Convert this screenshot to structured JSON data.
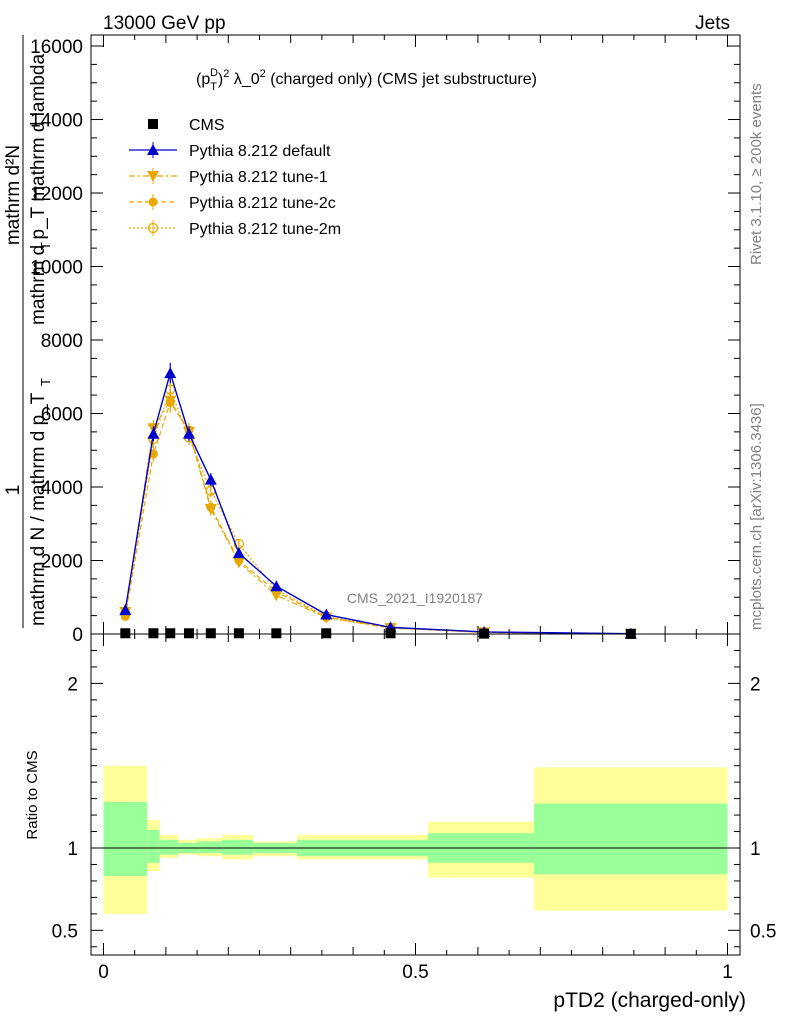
{
  "header": {
    "left": "13000 GeV pp",
    "right": "Jets"
  },
  "side_labels": {
    "rivet": "Rivet 3.1.10, ≥ 200k events",
    "mcplots": "mcplots.cern.ch [arXiv:1306.3436]"
  },
  "chart_data": [
    {
      "type": "line",
      "title": "(p_T^D)^2 λ_0^2 (charged only) (CMS jet substructure)",
      "title_parts": {
        "pre": "(p",
        "sup1": "D",
        "sub1": "T",
        "mid": ")",
        "sup2": "2",
        "lam": " λ_0",
        "sup3": "2",
        "post": " (charged only) (CMS jet substructure)"
      },
      "ylabel": {
        "frac1_num": "1",
        "frac1_den": "mathrm d N / mathrm d p_T",
        "frac1_den_sub": "T",
        "frac2_num": "mathrm d²N",
        "frac2_den": "mathrm d p_T mathrm d lambda",
        "frac2_den_sub": "T"
      },
      "xlabel": "pTD2 (charged-only)",
      "xlim": [
        -0.02,
        1.02
      ],
      "ylim": [
        0,
        16300
      ],
      "yticks": [
        0,
        2000,
        4000,
        6000,
        8000,
        10000,
        12000,
        14000,
        16000
      ],
      "ytick_labels": [
        "0",
        "2000",
        "4000",
        "6000",
        "8000",
        "10000",
        "12000",
        "14000",
        "16000"
      ],
      "watermark": "CMS_2021_I1920187",
      "series": [
        {
          "name": "CMS",
          "color": "#000000",
          "marker": "square",
          "x": [
            0.035,
            0.08,
            0.107,
            0.137,
            0.172,
            0.217,
            0.277,
            0.357,
            0.46,
            0.61,
            0.845
          ],
          "y": [
            20,
            20,
            20,
            20,
            20,
            20,
            20,
            20,
            20,
            10,
            5
          ]
        },
        {
          "name": "Pythia 8.212 default",
          "color": "#0000cc",
          "marker": "triangle",
          "dash": "",
          "x": [
            0.035,
            0.08,
            0.107,
            0.137,
            0.172,
            0.217,
            0.277,
            0.357,
            0.46,
            0.61,
            0.845
          ],
          "y": [
            650,
            5450,
            7100,
            5450,
            4200,
            2200,
            1300,
            530,
            180,
            55,
            8
          ],
          "err": [
            80,
            200,
            280,
            200,
            180,
            120,
            80,
            40,
            20,
            10,
            3
          ]
        },
        {
          "name": "Pythia 8.212 tune-1",
          "color": "#e8a800",
          "marker": "triangle-down",
          "dash": "6,3,2,3",
          "x": [
            0.035,
            0.08,
            0.107,
            0.137,
            0.172,
            0.217,
            0.277,
            0.357,
            0.46,
            0.61,
            0.845
          ],
          "y": [
            600,
            5600,
            6350,
            5500,
            3400,
            1950,
            1050,
            450,
            160,
            45,
            6
          ],
          "err": [
            80,
            220,
            280,
            200,
            180,
            120,
            80,
            40,
            20,
            10,
            3
          ]
        },
        {
          "name": "Pythia 8.212 tune-2c",
          "color": "#e8a800",
          "marker": "circle",
          "dash": "5,3",
          "x": [
            0.035,
            0.08,
            0.107,
            0.137,
            0.172,
            0.217,
            0.277,
            0.357,
            0.46,
            0.61,
            0.845
          ],
          "y": [
            480,
            4900,
            6300,
            5550,
            3450,
            2000,
            1150,
            450,
            170,
            45,
            6
          ],
          "err": [
            80,
            200,
            280,
            200,
            180,
            120,
            80,
            40,
            20,
            10,
            3
          ]
        },
        {
          "name": "Pythia 8.212 tune-2m",
          "color": "#e8a800",
          "marker": "circle-open",
          "dash": "2,2",
          "x": [
            0.035,
            0.08,
            0.107,
            0.137,
            0.172,
            0.217,
            0.277,
            0.357,
            0.46,
            0.61,
            0.845
          ],
          "y": [
            560,
            5300,
            6650,
            5350,
            3900,
            2450,
            1200,
            480,
            170,
            45,
            6
          ],
          "err": [
            80,
            200,
            280,
            200,
            180,
            120,
            80,
            40,
            20,
            10,
            3
          ]
        }
      ]
    },
    {
      "type": "area",
      "title": "",
      "ylabel": "Ratio to CMS",
      "xlim": [
        -0.02,
        1.02
      ],
      "ylim": [
        0.35,
        2.3
      ],
      "yticks": [
        0.5,
        1,
        2
      ],
      "ytick_labels": [
        "0.5",
        "1",
        "2"
      ],
      "xticks": [
        0,
        0.5,
        1
      ],
      "xtick_labels": [
        "0",
        "0.5",
        "1"
      ],
      "reference_line": 1,
      "bands": {
        "outer_color": "#ffff99",
        "inner_color": "#99ff99",
        "bins": [
          {
            "x0": 0.0,
            "x1": 0.07,
            "outer": [
              0.6,
              1.5
            ],
            "inner": [
              0.83,
              1.28
            ]
          },
          {
            "x0": 0.07,
            "x1": 0.09,
            "outer": [
              0.86,
              1.17
            ],
            "inner": [
              0.91,
              1.11
            ]
          },
          {
            "x0": 0.09,
            "x1": 0.12,
            "outer": [
              0.94,
              1.08
            ],
            "inner": [
              0.96,
              1.05
            ]
          },
          {
            "x0": 0.12,
            "x1": 0.15,
            "outer": [
              0.96,
              1.05
            ],
            "inner": [
              0.97,
              1.03
            ]
          },
          {
            "x0": 0.15,
            "x1": 0.19,
            "outer": [
              0.95,
              1.06
            ],
            "inner": [
              0.97,
              1.04
            ]
          },
          {
            "x0": 0.19,
            "x1": 0.24,
            "outer": [
              0.93,
              1.08
            ],
            "inner": [
              0.96,
              1.05
            ]
          },
          {
            "x0": 0.24,
            "x1": 0.31,
            "outer": [
              0.95,
              1.04
            ],
            "inner": [
              0.97,
              1.03
            ]
          },
          {
            "x0": 0.31,
            "x1": 0.52,
            "outer": [
              0.93,
              1.08
            ],
            "inner": [
              0.95,
              1.05
            ]
          },
          {
            "x0": 0.52,
            "x1": 0.69,
            "outer": [
              0.82,
              1.16
            ],
            "inner": [
              0.91,
              1.09
            ]
          },
          {
            "x0": 0.69,
            "x1": 1.0,
            "outer": [
              0.62,
              1.49
            ],
            "inner": [
              0.84,
              1.27
            ]
          }
        ]
      }
    }
  ]
}
